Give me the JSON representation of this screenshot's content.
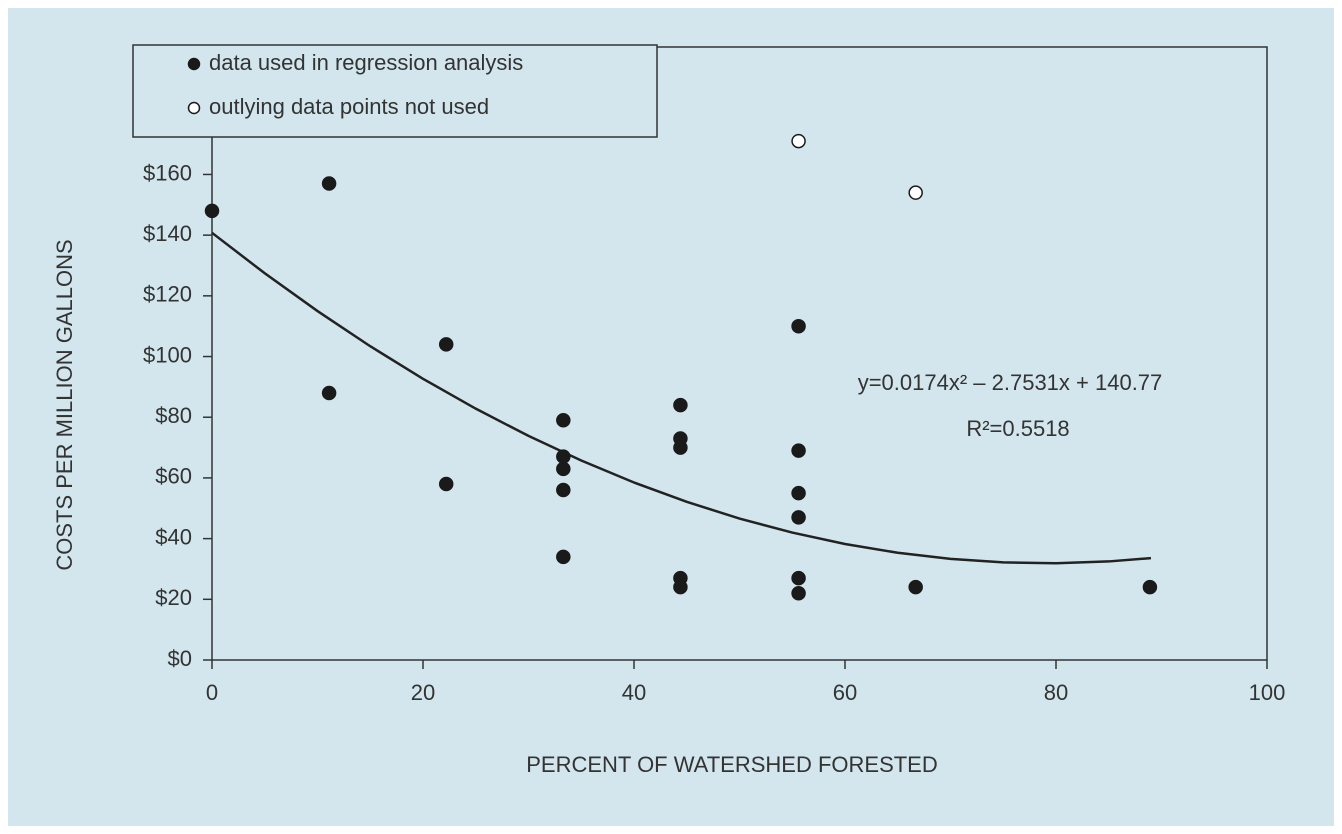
{
  "chart_data": {
    "type": "scatter",
    "x_label": "PERCENT OF WATERSHED FORESTED",
    "y_label": "COSTS PER MILLION GALLONS",
    "xlim": [
      0,
      100
    ],
    "xticks": [
      0,
      20,
      40,
      60,
      80,
      100
    ],
    "ylim": [
      0,
      202
    ],
    "yticks": [
      {
        "value": 0,
        "label": "$0"
      },
      {
        "value": 20,
        "label": "$20"
      },
      {
        "value": 40,
        "label": "$40"
      },
      {
        "value": 60,
        "label": "$60"
      },
      {
        "value": 80,
        "label": "$80"
      },
      {
        "value": 100,
        "label": "$100"
      },
      {
        "value": 120,
        "label": "$120"
      },
      {
        "value": 140,
        "label": "$140"
      },
      {
        "value": 160,
        "label": "$160"
      }
    ],
    "legend": "top-left",
    "series": [
      {
        "name": "data used in regression analysis",
        "color": "#1a1a1a",
        "marker": "filled",
        "x": [
          0,
          11.1,
          11.1,
          22.2,
          22.2,
          33.3,
          33.3,
          33.3,
          33.3,
          33.3,
          44.4,
          44.4,
          44.4,
          44.4,
          44.4,
          55.6,
          55.6,
          55.6,
          55.6,
          55.6,
          55.6,
          66.7,
          88.9
        ],
        "values": [
          148,
          157,
          88,
          104,
          58,
          79,
          67,
          63,
          56,
          34,
          84,
          73,
          70,
          27,
          24,
          110,
          69,
          55,
          47,
          27,
          22,
          24,
          24
        ]
      },
      {
        "name": "outlying data points not used",
        "color": "#1a1a1a",
        "marker": "open",
        "x": [
          55.6,
          66.7
        ],
        "values": [
          171,
          154
        ]
      }
    ],
    "fit": {
      "color": "#222222",
      "equation": "y=0.0174x² – 2.7531x + 140.77",
      "r2": "R²=0.5518",
      "x": [
        0,
        5,
        10,
        15,
        20,
        25,
        30,
        35,
        40,
        45,
        50,
        55,
        60,
        65,
        70,
        75,
        80,
        85,
        89
      ],
      "values": [
        140.77,
        127.44,
        114.98,
        103.39,
        92.67,
        82.82,
        73.84,
        65.73,
        58.49,
        52.12,
        46.61,
        41.99,
        38.22,
        35.34,
        33.31,
        32.17,
        31.88,
        32.48,
        33.57
      ]
    }
  }
}
